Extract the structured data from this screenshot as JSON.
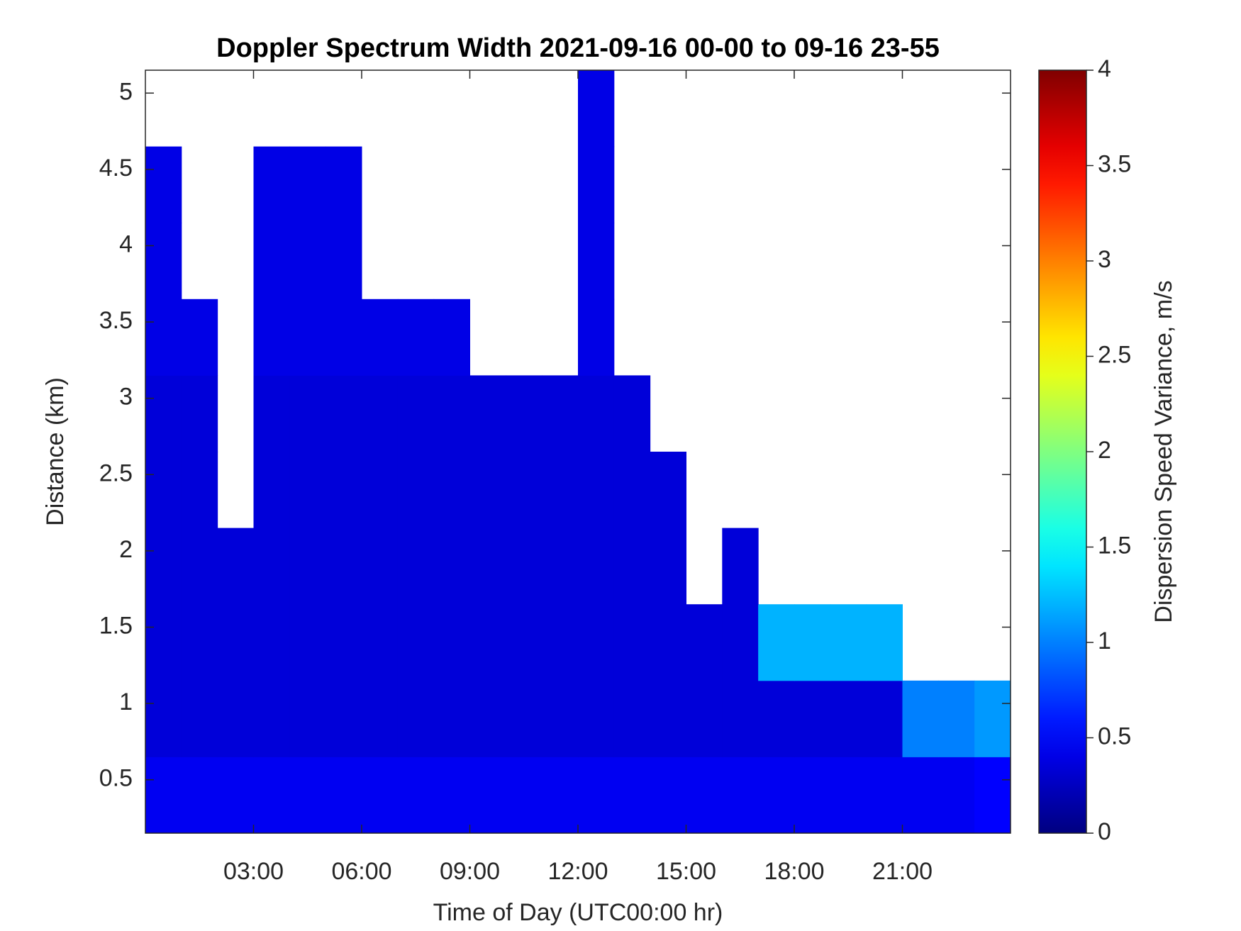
{
  "chart_data": {
    "type": "heatmap",
    "title": "Doppler Spectrum Width 2021-09-16 00-00 to 09-16 23-55",
    "x_label": "Time of Day (UTC00:00 hr)",
    "y_label": "Distance (km)",
    "colorbar_label": "Dispersion Speed Variance, m/s",
    "colormap": "jet",
    "x": [
      0.5,
      1.5,
      2.5,
      3.5,
      4.5,
      5.5,
      6.5,
      7.5,
      8.5,
      9.5,
      10.5,
      11.5,
      12.5,
      13.5,
      14.5,
      15.5,
      16.5,
      17.5,
      18.5,
      19.5,
      20.5,
      21.5,
      22.5,
      23.5
    ],
    "y": [
      0.4,
      0.9,
      1.4,
      1.9,
      2.4,
      2.9,
      3.4,
      3.9,
      4.4,
      4.9
    ],
    "z": [
      [
        0.45,
        0.45,
        0.45,
        0.45,
        0.45,
        0.45,
        0.45,
        0.45,
        0.45,
        0.45,
        0.45,
        0.45,
        0.45,
        0.45,
        0.45,
        0.45,
        0.45,
        0.45,
        0.45,
        0.45,
        0.45,
        0.45,
        0.45,
        0.5
      ],
      [
        0.35,
        0.35,
        0.35,
        0.35,
        0.35,
        0.35,
        0.35,
        0.35,
        0.35,
        0.35,
        0.35,
        0.35,
        0.35,
        0.35,
        0.35,
        0.35,
        0.35,
        0.35,
        0.35,
        0.35,
        0.35,
        1.0,
        1.0,
        1.1
      ],
      [
        0.35,
        0.35,
        0.35,
        0.35,
        0.35,
        0.35,
        0.35,
        0.35,
        0.35,
        0.35,
        0.35,
        0.35,
        0.35,
        0.35,
        0.35,
        0.35,
        0.35,
        1.2,
        1.2,
        1.2,
        1.2,
        null,
        null,
        null
      ],
      [
        0.35,
        0.35,
        0.35,
        0.35,
        0.35,
        0.35,
        0.35,
        0.35,
        0.35,
        0.35,
        0.35,
        0.35,
        0.35,
        0.35,
        0.35,
        null,
        0.35,
        null,
        null,
        null,
        null,
        null,
        null,
        null
      ],
      [
        0.35,
        0.35,
        null,
        0.35,
        0.35,
        0.35,
        0.35,
        0.35,
        0.35,
        0.35,
        0.35,
        0.35,
        0.35,
        0.35,
        0.35,
        null,
        null,
        null,
        null,
        null,
        null,
        null,
        null,
        null
      ],
      [
        0.35,
        0.35,
        null,
        0.35,
        0.35,
        0.35,
        0.35,
        0.35,
        0.35,
        0.35,
        0.35,
        0.35,
        0.35,
        0.35,
        null,
        null,
        null,
        null,
        null,
        null,
        null,
        null,
        null,
        null
      ],
      [
        0.4,
        0.4,
        null,
        0.4,
        0.4,
        0.4,
        0.4,
        0.4,
        0.4,
        null,
        null,
        null,
        0.4,
        null,
        null,
        null,
        null,
        null,
        null,
        null,
        null,
        null,
        null,
        null
      ],
      [
        0.4,
        null,
        null,
        0.4,
        0.4,
        0.4,
        null,
        null,
        null,
        null,
        null,
        null,
        0.4,
        null,
        null,
        null,
        null,
        null,
        null,
        null,
        null,
        null,
        null,
        null
      ],
      [
        0.4,
        null,
        null,
        0.4,
        0.4,
        0.4,
        null,
        null,
        null,
        null,
        null,
        null,
        0.4,
        null,
        null,
        null,
        null,
        null,
        null,
        null,
        null,
        null,
        null,
        null
      ],
      [
        null,
        null,
        null,
        null,
        null,
        null,
        null,
        null,
        null,
        null,
        null,
        null,
        0.4,
        null,
        null,
        null,
        null,
        null,
        null,
        null,
        null,
        null,
        null,
        null
      ]
    ],
    "xlim": [
      0,
      24
    ],
    "ylim": [
      0.15,
      5.15
    ],
    "clim": [
      0,
      4
    ],
    "xticks": [
      {
        "value": 3,
        "label": "03:00"
      },
      {
        "value": 6,
        "label": "06:00"
      },
      {
        "value": 9,
        "label": "09:00"
      },
      {
        "value": 12,
        "label": "12:00"
      },
      {
        "value": 15,
        "label": "15:00"
      },
      {
        "value": 18,
        "label": "18:00"
      },
      {
        "value": 21,
        "label": "21:00"
      }
    ],
    "yticks": [
      0.5,
      1,
      1.5,
      2,
      2.5,
      3,
      3.5,
      4,
      4.5,
      5
    ],
    "cticks": [
      0,
      0.5,
      1,
      1.5,
      2,
      2.5,
      3,
      3.5,
      4
    ]
  }
}
